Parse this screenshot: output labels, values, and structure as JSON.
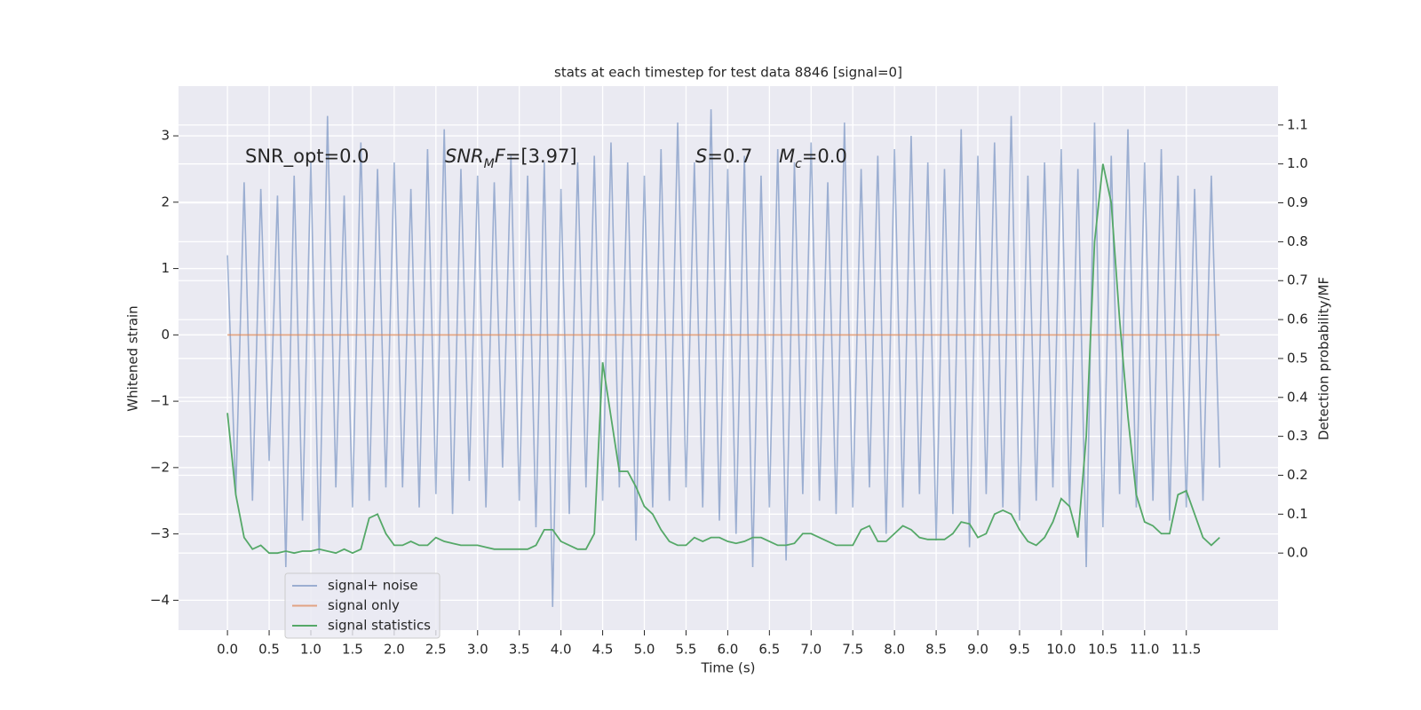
{
  "chart_data": {
    "type": "line",
    "title": "stats at each timestep for test data 8846 [signal=0]",
    "xlabel": "Time (s)",
    "ylabel": "Whitened strain",
    "y2label": "Detection probability/MF",
    "annotations": [
      [
        {
          "text": "SNR_opt=0.0"
        }
      ],
      [
        {
          "text": "SNR",
          "italic": true
        },
        {
          "text": "M",
          "italic": true,
          "sub": true
        },
        {
          "text": "F",
          "italic": true
        },
        {
          "text": "=[3.97]"
        }
      ],
      [
        {
          "text": "S",
          "italic": true
        },
        {
          "text": "=0.7"
        }
      ],
      [
        {
          "text": "M",
          "italic": true
        },
        {
          "text": "c",
          "italic": true,
          "sub": true
        },
        {
          "text": "=0.0"
        }
      ]
    ],
    "x": [
      0,
      0.1,
      0.2,
      0.3,
      0.4,
      0.5,
      0.6,
      0.7,
      0.8,
      0.9,
      1,
      1.1,
      1.2,
      1.3,
      1.4,
      1.5,
      1.6,
      1.7,
      1.8,
      1.9,
      2,
      2.1,
      2.2,
      2.3,
      2.4,
      2.5,
      2.6,
      2.7,
      2.8,
      2.9,
      3,
      3.1,
      3.2,
      3.3,
      3.4,
      3.5,
      3.6,
      3.7,
      3.8,
      3.9,
      4,
      4.1,
      4.2,
      4.3,
      4.4,
      4.5,
      4.6,
      4.7,
      4.8,
      4.9,
      5,
      5.1,
      5.2,
      5.3,
      5.4,
      5.5,
      5.6,
      5.7,
      5.8,
      5.9,
      6,
      6.1,
      6.2,
      6.3,
      6.4,
      6.5,
      6.6,
      6.7,
      6.8,
      6.9,
      7,
      7.1,
      7.2,
      7.3,
      7.4,
      7.5,
      7.6,
      7.7,
      7.8,
      7.9,
      8,
      8.1,
      8.2,
      8.3,
      8.4,
      8.5,
      8.6,
      8.7,
      8.8,
      8.9,
      9,
      9.1,
      9.2,
      9.3,
      9.4,
      9.5,
      9.6,
      9.7,
      9.8,
      9.9,
      10,
      10.1,
      10.2,
      10.3,
      10.4,
      10.5,
      10.6,
      10.7,
      10.8,
      10.9,
      11,
      11.1,
      11.2,
      11.3,
      11.4,
      11.5,
      11.6,
      11.7,
      11.8,
      11.9
    ],
    "series": [
      {
        "name": "signal+ noise",
        "color": "#4c72b0",
        "alpha": 0.5,
        "values": [
          1.2,
          -2.4,
          2.3,
          -2.5,
          2.2,
          -1.9,
          2.1,
          -3.5,
          2.4,
          -2.8,
          2.6,
          -3.3,
          3.3,
          -2.3,
          2.1,
          -2.6,
          2.9,
          -2.5,
          2.5,
          -2.3,
          2.6,
          -2.3,
          2.2,
          -2.6,
          2.8,
          -2.4,
          3.1,
          -2.7,
          2.5,
          -2.2,
          2.4,
          -2.6,
          2.3,
          -2.0,
          2.7,
          -2.5,
          2.4,
          -2.9,
          2.6,
          -4.1,
          2.2,
          -2.7,
          2.6,
          -2.3,
          2.7,
          -2.5,
          2.9,
          -2.3,
          2.6,
          -3.1,
          2.4,
          -2.6,
          2.8,
          -2.5,
          3.2,
          -2.3,
          2.6,
          -2.6,
          3.4,
          -2.8,
          2.5,
          -3.0,
          2.7,
          -3.5,
          2.4,
          -2.6,
          2.8,
          -3.4,
          2.6,
          -2.4,
          2.9,
          -2.5,
          2.3,
          -2.7,
          3.2,
          -2.6,
          2.5,
          -2.3,
          2.7,
          -3.0,
          2.8,
          -2.6,
          3.0,
          -2.4,
          2.6,
          -3.1,
          2.5,
          -2.7,
          3.1,
          -3.2,
          2.7,
          -2.4,
          2.9,
          -2.6,
          3.3,
          -2.8,
          2.4,
          -2.5,
          2.6,
          -2.3,
          2.8,
          -2.6,
          2.5,
          -3.5,
          3.2,
          -2.9,
          2.7,
          -2.4,
          3.1,
          -2.6,
          2.6,
          -2.5,
          2.8,
          -2.8,
          2.4,
          -2.6,
          2.2,
          -2.5,
          2.4,
          -2.0
        ]
      },
      {
        "name": "signal only",
        "color": "#dd8452",
        "alpha": 0.7,
        "values": [
          0,
          0,
          0,
          0,
          0,
          0,
          0,
          0,
          0,
          0,
          0,
          0,
          0,
          0,
          0,
          0,
          0,
          0,
          0,
          0,
          0,
          0,
          0,
          0,
          0,
          0,
          0,
          0,
          0,
          0,
          0,
          0,
          0,
          0,
          0,
          0,
          0,
          0,
          0,
          0,
          0,
          0,
          0,
          0,
          0,
          0,
          0,
          0,
          0,
          0,
          0,
          0,
          0,
          0,
          0,
          0,
          0,
          0,
          0,
          0,
          0,
          0,
          0,
          0,
          0,
          0,
          0,
          0,
          0,
          0,
          0,
          0,
          0,
          0,
          0,
          0,
          0,
          0,
          0,
          0,
          0,
          0,
          0,
          0,
          0,
          0,
          0,
          0,
          0,
          0,
          0,
          0,
          0,
          0,
          0,
          0,
          0,
          0,
          0,
          0,
          0,
          0,
          0,
          0,
          0,
          0,
          0,
          0,
          0,
          0,
          0,
          0,
          0,
          0,
          0,
          0,
          0,
          0,
          0,
          0
        ]
      },
      {
        "name": "signal statistics",
        "color": "#55a868",
        "alpha": 1,
        "axis": "y2",
        "values": [
          0.36,
          0.15,
          0.04,
          0.01,
          0.02,
          0,
          0,
          0.005,
          0,
          0.005,
          0.005,
          0.01,
          0.005,
          0,
          0.01,
          0,
          0.01,
          0.09,
          0.1,
          0.05,
          0.02,
          0.02,
          0.03,
          0.02,
          0.02,
          0.04,
          0.03,
          0.025,
          0.02,
          0.02,
          0.02,
          0.015,
          0.01,
          0.01,
          0.01,
          0.01,
          0.01,
          0.02,
          0.06,
          0.06,
          0.03,
          0.02,
          0.01,
          0.01,
          0.05,
          0.49,
          0.35,
          0.21,
          0.21,
          0.17,
          0.12,
          0.1,
          0.06,
          0.03,
          0.02,
          0.02,
          0.04,
          0.03,
          0.04,
          0.04,
          0.03,
          0.025,
          0.03,
          0.04,
          0.04,
          0.03,
          0.02,
          0.02,
          0.025,
          0.05,
          0.05,
          0.04,
          0.03,
          0.02,
          0.02,
          0.02,
          0.06,
          0.07,
          0.03,
          0.03,
          0.05,
          0.07,
          0.06,
          0.04,
          0.035,
          0.035,
          0.035,
          0.05,
          0.08,
          0.075,
          0.04,
          0.05,
          0.1,
          0.11,
          0.1,
          0.06,
          0.03,
          0.02,
          0.04,
          0.08,
          0.14,
          0.12,
          0.04,
          0.3,
          0.8,
          1.0,
          0.9,
          0.6,
          0.35,
          0.15,
          0.08,
          0.07,
          0.05,
          0.05,
          0.15,
          0.16,
          0.1,
          0.04,
          0.02,
          0.04
        ]
      }
    ],
    "xlim": [
      -0.587,
      12.6
    ],
    "xticks": [
      {
        "value": 0,
        "label": "0.0"
      },
      0.5,
      {
        "value": 1,
        "label": "1.0"
      },
      1.5,
      {
        "value": 2,
        "label": "2.0"
      },
      2.5,
      {
        "value": 3,
        "label": "3.0"
      },
      3.5,
      {
        "value": 4,
        "label": "4.0"
      },
      4.5,
      {
        "value": 5,
        "label": "5.0"
      },
      5.5,
      {
        "value": 6,
        "label": "6.0"
      },
      6.5,
      {
        "value": 7,
        "label": "7.0"
      },
      7.5,
      {
        "value": 8,
        "label": "8.0"
      },
      8.5,
      {
        "value": 9,
        "label": "9.0"
      },
      9.5,
      {
        "value": 10,
        "label": "10.0"
      },
      10.5,
      {
        "value": 11,
        "label": "11.0"
      },
      11.5
    ],
    "ylim": [
      -4.45,
      3.75
    ],
    "yticks": [
      {
        "value": -4,
        "label": "−4"
      },
      {
        "value": -3,
        "label": "−3"
      },
      {
        "value": -2,
        "label": "−2"
      },
      {
        "value": -1,
        "label": "−1"
      },
      0,
      1,
      2,
      3
    ],
    "y2lim": [
      -0.198,
      1.2
    ],
    "y2ticks": [
      {
        "value": 0,
        "label": "0.0"
      },
      0.1,
      0.2,
      0.3,
      0.4,
      0.5,
      0.6,
      0.7,
      0.8,
      0.9,
      {
        "value": 1,
        "label": "1.0"
      },
      1.1
    ],
    "grid": true,
    "legend": "lower left"
  }
}
